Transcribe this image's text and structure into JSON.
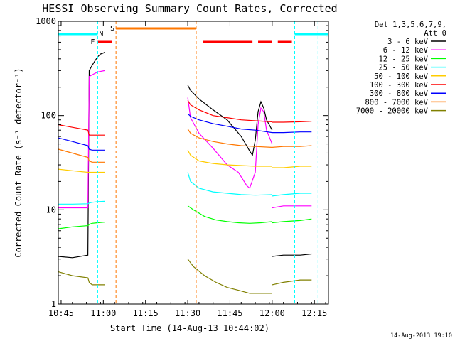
{
  "chart_data": {
    "type": "line",
    "title": "HESSI Observing Summary Count Rates, Corrected",
    "xlabel": "Start Time (14-Aug-13 10:44:02)",
    "ylabel": "Corrected Count Rate (s⁻¹ detector⁻¹)",
    "x_unit": "minutes after 10:44:02",
    "xlim": [
      0,
      96
    ],
    "ylim": [
      1,
      1000
    ],
    "yscale": "log",
    "x_tick_labels": [
      "10:45",
      "11:00",
      "11:15",
      "11:30",
      "11:45",
      "12:00",
      "12:15"
    ],
    "x_tick_minutes": [
      1,
      16,
      31,
      46,
      61,
      76,
      91
    ],
    "y_tick_labels": [
      "1",
      "10",
      "100",
      "1000"
    ],
    "legend_header": [
      "Det 1,3,5,6,7,9,",
      "Att 0"
    ],
    "legend_position": "right",
    "grid": false,
    "series": [
      {
        "name": "3 - 6 keV",
        "color": "#000000",
        "segments": [
          {
            "x": [
              0,
              5,
              10.5,
              11,
              12,
              13,
              14,
              15,
              16,
              16.5
            ],
            "y": [
              3.2,
              3.1,
              3.3,
              300,
              340,
              380,
              420,
              450,
              460,
              470
            ]
          },
          {
            "x": [
              46,
              47,
              50,
              55,
              60,
              65,
              68,
              69,
              70,
              71,
              72,
              73,
              74,
              76
            ],
            "y": [
              210,
              185,
              150,
              115,
              90,
              60,
              42,
              38,
              55,
              110,
              140,
              120,
              90,
              70
            ]
          },
          {
            "x": [
              76,
              80,
              86,
              90
            ],
            "y": [
              3.2,
              3.3,
              3.3,
              3.4
            ]
          }
        ]
      },
      {
        "name": "6 - 12 keV",
        "color": "#ff00ff",
        "segments": [
          {
            "x": [
              0,
              5,
              10.5,
              11,
              12,
              14,
              16.5
            ],
            "y": [
              10.5,
              10.5,
              10.5,
              260,
              270,
              290,
              300
            ]
          },
          {
            "x": [
              46,
              47,
              50,
              55,
              60,
              64,
              67,
              68,
              70,
              71,
              72,
              73,
              74,
              76
            ],
            "y": [
              155,
              95,
              65,
              45,
              30,
              25,
              18,
              17,
              25,
              80,
              120,
              110,
              70,
              50
            ]
          },
          {
            "x": [
              76,
              80,
              86,
              90
            ],
            "y": [
              10.5,
              11,
              11,
              11
            ]
          }
        ]
      },
      {
        "name": "12 - 25 keV",
        "color": "#00ff00",
        "segments": [
          {
            "x": [
              0,
              5,
              10.5,
              11,
              12,
              14,
              16.5
            ],
            "y": [
              6.3,
              6.6,
              6.8,
              7,
              7.2,
              7.3,
              7.4
            ]
          },
          {
            "x": [
              46,
              48,
              52,
              56,
              60,
              64,
              68,
              72,
              76
            ],
            "y": [
              11,
              10,
              8.5,
              7.8,
              7.5,
              7.3,
              7.2,
              7.3,
              7.5
            ]
          },
          {
            "x": [
              76,
              80,
              86,
              90
            ],
            "y": [
              7.3,
              7.5,
              7.7,
              8
            ]
          }
        ]
      },
      {
        "name": "25 - 50 keV",
        "color": "#00ffff",
        "segments": [
          {
            "x": [
              0,
              5,
              10.5,
              11,
              12,
              14,
              16.5
            ],
            "y": [
              11.5,
              11.5,
              11.6,
              11.8,
              12,
              12.2,
              12.3
            ]
          },
          {
            "x": [
              46,
              47,
              50,
              55,
              60,
              65,
              70,
              76
            ],
            "y": [
              25,
              20,
              17,
              15.5,
              15,
              14.5,
              14.3,
              14.5
            ]
          },
          {
            "x": [
              76,
              80,
              86,
              90
            ],
            "y": [
              14,
              14.5,
              15,
              15
            ]
          }
        ]
      },
      {
        "name": "50 - 100 keV",
        "color": "#ffcc00",
        "segments": [
          {
            "x": [
              0,
              5,
              10.5,
              11,
              12,
              14,
              16.5
            ],
            "y": [
              27,
              26,
              25,
              25,
              25,
              25,
              25
            ]
          },
          {
            "x": [
              46,
              47,
              50,
              55,
              60,
              65,
              70,
              76
            ],
            "y": [
              43,
              38,
              33,
              31,
              30,
              29.5,
              29,
              29
            ]
          },
          {
            "x": [
              76,
              80,
              86,
              90
            ],
            "y": [
              28,
              28,
              29,
              29
            ]
          }
        ]
      },
      {
        "name": "100 - 300 keV",
        "color": "#ff0000",
        "segments": [
          {
            "x": [
              0,
              5,
              10.5,
              11,
              12,
              14,
              16.5
            ],
            "y": [
              80,
              75,
              70,
              62,
              62,
              62,
              62
            ]
          },
          {
            "x": [
              46,
              47,
              50,
              55,
              60,
              65,
              70,
              76
            ],
            "y": [
              145,
              130,
              115,
              100,
              95,
              90,
              88,
              86
            ]
          },
          {
            "x": [
              76,
              80,
              86,
              90
            ],
            "y": [
              85,
              85,
              86,
              87
            ]
          }
        ]
      },
      {
        "name": "300 - 800 keV",
        "color": "#0000ff",
        "segments": [
          {
            "x": [
              0,
              5,
              10.5,
              11,
              12,
              14,
              16.5
            ],
            "y": [
              58,
              53,
              48,
              44,
              43,
              43,
              43
            ]
          },
          {
            "x": [
              46,
              47,
              50,
              55,
              60,
              65,
              70,
              76
            ],
            "y": [
              105,
              98,
              90,
              82,
              77,
              72,
              70,
              66
            ]
          },
          {
            "x": [
              76,
              80,
              86,
              90
            ],
            "y": [
              66,
              66,
              67,
              67
            ]
          }
        ]
      },
      {
        "name": "800 - 7000 keV",
        "color": "#ff7700",
        "segments": [
          {
            "x": [
              0,
              5,
              10.5,
              11,
              12,
              14,
              16.5
            ],
            "y": [
              44,
              40,
              36,
              33,
              32,
              32,
              32
            ]
          },
          {
            "x": [
              46,
              47,
              50,
              55,
              60,
              65,
              70,
              76
            ],
            "y": [
              72,
              65,
              58,
              53,
              50,
              48,
              47,
              46
            ]
          },
          {
            "x": [
              76,
              80,
              86,
              90
            ],
            "y": [
              46,
              47,
              47,
              48
            ]
          }
        ]
      },
      {
        "name": "7000 - 20000 keV",
        "color": "#808000",
        "segments": [
          {
            "x": [
              0,
              5,
              10.5,
              11,
              12,
              14,
              16.5
            ],
            "y": [
              2.2,
              2,
              1.9,
              1.7,
              1.6,
              1.6,
              1.6
            ]
          },
          {
            "x": [
              46,
              48,
              52,
              56,
              60,
              64,
              68,
              72,
              76
            ],
            "y": [
              3,
              2.5,
              2,
              1.7,
              1.5,
              1.4,
              1.3,
              1.3,
              1.3
            ]
          },
          {
            "x": [
              76,
              80,
              86,
              90
            ],
            "y": [
              1.6,
              1.7,
              1.8,
              1.8
            ]
          }
        ]
      }
    ],
    "flag_bars": [
      {
        "label": "F",
        "color": "#ff0000",
        "spans": [
          [
            14,
            19
          ],
          [
            51.5,
            69
          ],
          [
            71,
            76
          ],
          [
            78,
            83
          ]
        ]
      },
      {
        "label": "N",
        "color": "#00ffff",
        "spans": [
          [
            0,
            14
          ],
          [
            84,
            96
          ]
        ]
      },
      {
        "label": "S",
        "color": "#ff7700",
        "spans": [
          [
            20.5,
            49
          ]
        ]
      }
    ],
    "boundaries": [
      {
        "x": 14,
        "color": "#00ffff",
        "style": "dashed"
      },
      {
        "x": 20.5,
        "color": "#ff7700",
        "style": "dashed"
      },
      {
        "x": 49,
        "color": "#ff7700",
        "style": "dashed"
      },
      {
        "x": 84,
        "color": "#00ffff",
        "style": "dashed"
      },
      {
        "x": 92.3,
        "color": "#00ffff",
        "style": "dashed"
      }
    ]
  },
  "timestamp": "14-Aug-2013 19:10"
}
